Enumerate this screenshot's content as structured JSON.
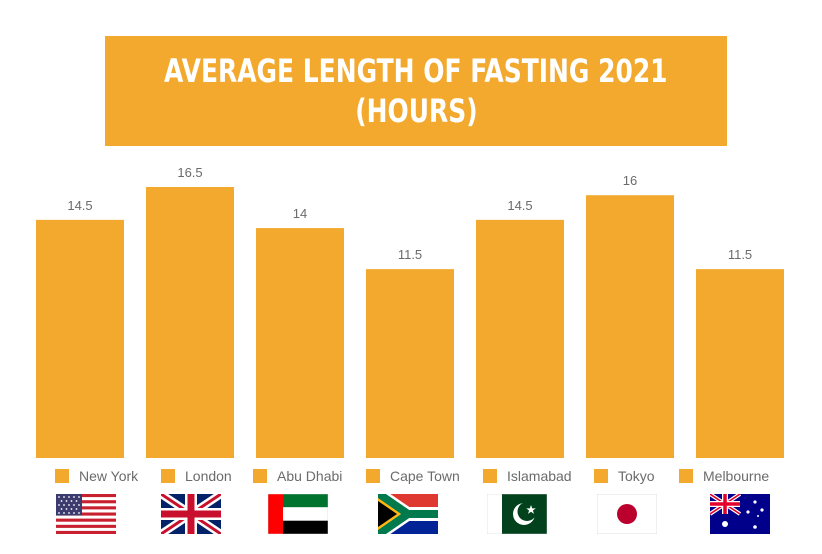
{
  "title": {
    "line1": "AVERAGE LENGTH OF FASTING 2021",
    "line2": "(HOURS)"
  },
  "colors": {
    "bar": "#f2a92e",
    "label": "#6b6b6b"
  },
  "chart_data": {
    "type": "bar",
    "title": "AVERAGE LENGTH OF FASTING 2021 (HOURS)",
    "categories": [
      "New York",
      "London",
      "Abu Dhabi",
      "Cape Town",
      "Islamabad",
      "Tokyo",
      "Melbourne"
    ],
    "values": [
      14.5,
      16.5,
      14,
      11.5,
      14.5,
      16,
      11.5
    ],
    "value_labels": [
      "14.5",
      "16.5",
      "14",
      "11.5",
      "14.5",
      "16",
      "11.5"
    ],
    "xlabel": "",
    "ylabel": "",
    "ylim": [
      0,
      16.5
    ],
    "grid": false,
    "legend": "bottom"
  },
  "legend": [
    {
      "label": "New York",
      "flag": "usa-flag-icon"
    },
    {
      "label": "London",
      "flag": "uk-flag-icon"
    },
    {
      "label": "Abu Dhabi",
      "flag": "uae-flag-icon"
    },
    {
      "label": "Cape Town",
      "flag": "south-africa-flag-icon"
    },
    {
      "label": "Islamabad",
      "flag": "pakistan-flag-icon"
    },
    {
      "label": "Tokyo",
      "flag": "japan-flag-icon"
    },
    {
      "label": "Melbourne",
      "flag": "australia-flag-icon"
    }
  ]
}
